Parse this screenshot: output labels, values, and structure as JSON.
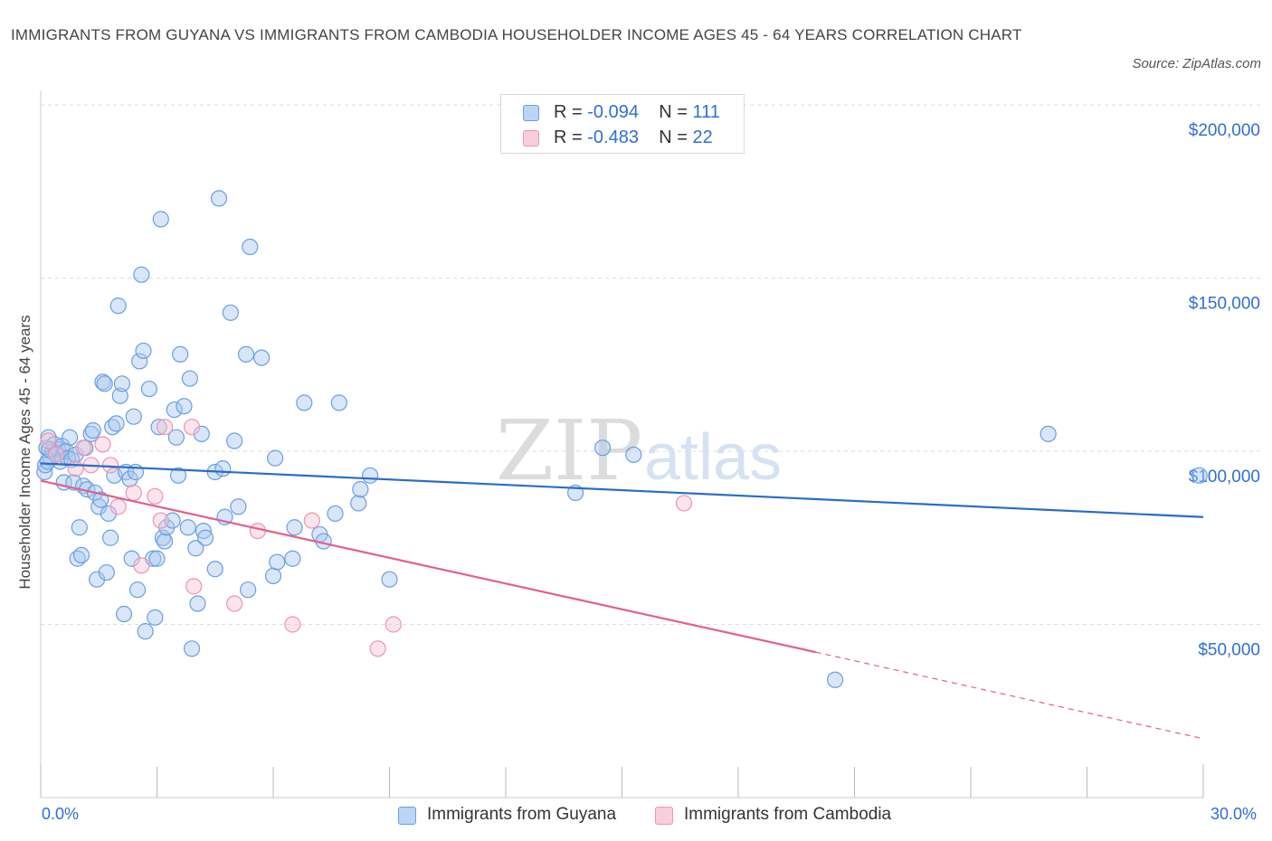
{
  "header": {
    "title": "IMMIGRANTS FROM GUYANA VS IMMIGRANTS FROM CAMBODIA HOUSEHOLDER INCOME AGES 45 - 64 YEARS CORRELATION CHART",
    "source": "Source: ZipAtlas.com"
  },
  "legend": {
    "rows": [
      {
        "r_label": "R = ",
        "r_value": "-0.094",
        "n_label": "N = ",
        "n_value": "111",
        "color": "#a8c8f0"
      },
      {
        "r_label": "R = ",
        "r_value": "-0.483",
        "n_label": "N = ",
        "n_value": "22",
        "color": "#f5b8cc"
      }
    ]
  },
  "bottom_legend": {
    "guyana": "Immigrants from Guyana",
    "cambodia": "Immigrants from Cambodia"
  },
  "watermark": {
    "zip": "ZIP",
    "atlas": "atlas"
  },
  "colors": {
    "guyana_fill": "#a8c8f0",
    "guyana_stroke": "#6a9fe0",
    "guyana_line": "#2a6cc8",
    "cambodia_fill": "#f7c3d4",
    "cambodia_stroke": "#ec95b3",
    "cambodia_line": "#e0608c",
    "tick_text": "#2f6fd1"
  },
  "chart_data": {
    "type": "scatter",
    "title": "IMMIGRANTS FROM GUYANA VS IMMIGRANTS FROM CAMBODIA HOUSEHOLDER INCOME AGES 45 - 64 YEARS CORRELATION CHART",
    "xlabel": "",
    "ylabel": "Householder Income Ages 45 - 64 years",
    "x_tick_labels": [
      "0.0%",
      "30.0%"
    ],
    "y_tick_labels": [
      "$50,000",
      "$100,000",
      "$150,000",
      "$200,000"
    ],
    "y_ticks": [
      50000,
      100000,
      150000,
      200000
    ],
    "xlim": [
      0,
      30
    ],
    "ylim": [
      0,
      205000
    ],
    "grid": true,
    "legend_position": "top-center",
    "series": [
      {
        "name": "Immigrants from Guyana",
        "color": "#a8c8f0",
        "trend": {
          "x": [
            0,
            30
          ],
          "y": [
            96500,
            81000
          ],
          "dashed_from": null
        },
        "points": [
          [
            0.1,
            94000
          ],
          [
            0.15,
            101000
          ],
          [
            0.2,
            104000
          ],
          [
            0.25,
            98000
          ],
          [
            0.3,
            100000
          ],
          [
            0.35,
            102000
          ],
          [
            0.4,
            99500
          ],
          [
            0.45,
            100500
          ],
          [
            0.5,
            97000
          ],
          [
            0.55,
            101500
          ],
          [
            0.6,
            91000
          ],
          [
            0.65,
            100000
          ],
          [
            0.7,
            98000
          ],
          [
            0.75,
            104000
          ],
          [
            0.8,
            97500
          ],
          [
            0.85,
            91000
          ],
          [
            0.9,
            99000
          ],
          [
            0.95,
            69000
          ],
          [
            1.0,
            78000
          ],
          [
            1.05,
            70000
          ],
          [
            1.1,
            90000
          ],
          [
            1.15,
            101000
          ],
          [
            1.2,
            89000
          ],
          [
            1.3,
            105000
          ],
          [
            1.35,
            106000
          ],
          [
            1.4,
            88000
          ],
          [
            1.45,
            63000
          ],
          [
            1.5,
            84000
          ],
          [
            1.55,
            86000
          ],
          [
            1.6,
            120000
          ],
          [
            1.65,
            119500
          ],
          [
            1.7,
            65000
          ],
          [
            1.75,
            82000
          ],
          [
            1.8,
            75000
          ],
          [
            1.85,
            107000
          ],
          [
            1.9,
            93000
          ],
          [
            1.95,
            108000
          ],
          [
            2.0,
            142000
          ],
          [
            2.05,
            116000
          ],
          [
            2.1,
            119500
          ],
          [
            2.15,
            53000
          ],
          [
            2.2,
            94000
          ],
          [
            2.3,
            92000
          ],
          [
            2.35,
            69000
          ],
          [
            2.4,
            110000
          ],
          [
            2.45,
            94000
          ],
          [
            2.5,
            60000
          ],
          [
            2.55,
            126000
          ],
          [
            2.6,
            151000
          ],
          [
            2.65,
            129000
          ],
          [
            2.7,
            48000
          ],
          [
            2.8,
            118000
          ],
          [
            2.9,
            69000
          ],
          [
            2.95,
            52000
          ],
          [
            3.0,
            69000
          ],
          [
            3.05,
            107000
          ],
          [
            3.1,
            167000
          ],
          [
            3.15,
            75000
          ],
          [
            3.2,
            74000
          ],
          [
            3.25,
            78000
          ],
          [
            3.4,
            80000
          ],
          [
            3.45,
            112000
          ],
          [
            3.5,
            104000
          ],
          [
            3.55,
            93000
          ],
          [
            3.6,
            128000
          ],
          [
            3.7,
            113000
          ],
          [
            3.8,
            78000
          ],
          [
            3.85,
            121000
          ],
          [
            3.9,
            43000
          ],
          [
            4.0,
            72000
          ],
          [
            4.05,
            56000
          ],
          [
            4.15,
            105000
          ],
          [
            4.2,
            77000
          ],
          [
            4.25,
            75000
          ],
          [
            4.5,
            94000
          ],
          [
            4.5,
            66000
          ],
          [
            4.6,
            173000
          ],
          [
            4.7,
            95000
          ],
          [
            4.75,
            81000
          ],
          [
            4.9,
            140000
          ],
          [
            5.0,
            103000
          ],
          [
            5.1,
            84000
          ],
          [
            5.3,
            128000
          ],
          [
            5.35,
            60000
          ],
          [
            5.4,
            159000
          ],
          [
            5.7,
            127000
          ],
          [
            6.0,
            64000
          ],
          [
            6.05,
            98000
          ],
          [
            6.1,
            68000
          ],
          [
            6.5,
            69000
          ],
          [
            6.55,
            78000
          ],
          [
            6.8,
            114000
          ],
          [
            7.2,
            76000
          ],
          [
            7.3,
            74000
          ],
          [
            7.6,
            82000
          ],
          [
            7.7,
            114000
          ],
          [
            8.2,
            85000
          ],
          [
            8.25,
            89000
          ],
          [
            8.5,
            93000
          ],
          [
            9.0,
            63000
          ],
          [
            13.8,
            88000
          ],
          [
            14.5,
            101000
          ],
          [
            15.3,
            99000
          ],
          [
            20.5,
            34000
          ],
          [
            26.0,
            105000
          ],
          [
            29.9,
            93000
          ],
          [
            0.12,
            96000
          ],
          [
            0.18,
            97000
          ],
          [
            0.22,
            100500
          ]
        ]
      },
      {
        "name": "Immigrants from Cambodia",
        "color": "#f7c3d4",
        "trend": {
          "x": [
            0,
            20,
            30
          ],
          "y": [
            91500,
            42000,
            17000
          ],
          "dashed_from": 20
        },
        "points": [
          [
            0.2,
            103000
          ],
          [
            0.4,
            99000
          ],
          [
            0.9,
            95000
          ],
          [
            1.1,
            101000
          ],
          [
            1.3,
            96000
          ],
          [
            1.6,
            102000
          ],
          [
            1.8,
            96000
          ],
          [
            2.0,
            84000
          ],
          [
            2.4,
            88000
          ],
          [
            2.6,
            67000
          ],
          [
            2.95,
            87000
          ],
          [
            3.1,
            80000
          ],
          [
            3.2,
            107000
          ],
          [
            3.95,
            61000
          ],
          [
            3.9,
            107000
          ],
          [
            5.0,
            56000
          ],
          [
            5.6,
            77000
          ],
          [
            6.5,
            50000
          ],
          [
            7.0,
            80000
          ],
          [
            8.7,
            43000
          ],
          [
            9.1,
            50000
          ],
          [
            16.6,
            85000
          ]
        ]
      }
    ]
  }
}
